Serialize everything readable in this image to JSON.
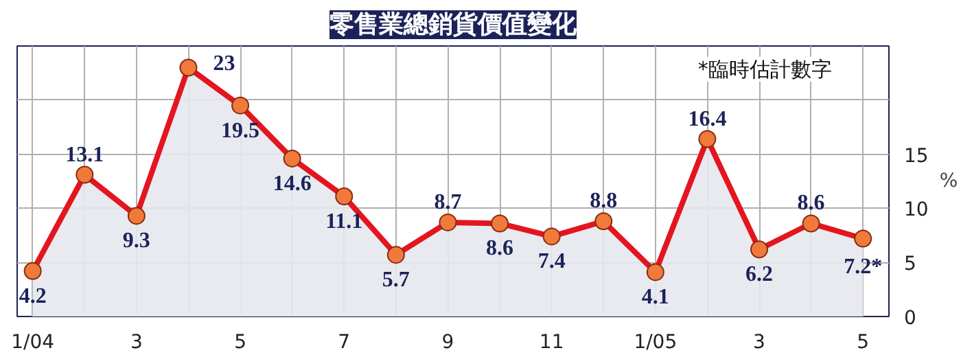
{
  "chart_data": {
    "type": "area",
    "title": "零售業總銷貨價值變化",
    "ylabel": "%",
    "annotations": [
      "*臨時估計數字"
    ],
    "categories": [
      "1/04",
      null,
      "3",
      null,
      "5",
      null,
      "7",
      null,
      "9",
      null,
      "11",
      null,
      "1/05",
      null,
      "3",
      null,
      "5"
    ],
    "series": [
      {
        "color": "#e3151f",
        "values": [
          4.2,
          13.1,
          9.3,
          23,
          19.5,
          14.6,
          11.1,
          5.7,
          8.7,
          8.6,
          7.4,
          8.8,
          4.1,
          16.4,
          6.2,
          8.6,
          7.2
        ],
        "value_labels": [
          "4.2",
          "13.1",
          "9.3",
          "23",
          "19.5",
          "14.6",
          "11.1",
          "5.7",
          "8.7",
          "8.6",
          "7.4",
          "8.8",
          "4.1",
          "16.4",
          "6.2",
          "8.6",
          "7.2*"
        ]
      }
    ],
    "ylim": [
      0,
      25
    ],
    "yticks": [
      0,
      5,
      10,
      15,
      {
        "value": 20,
        "label": null
      },
      {
        "value": 25,
        "label": null
      }
    ],
    "marker": "circle",
    "grid": true
  }
}
